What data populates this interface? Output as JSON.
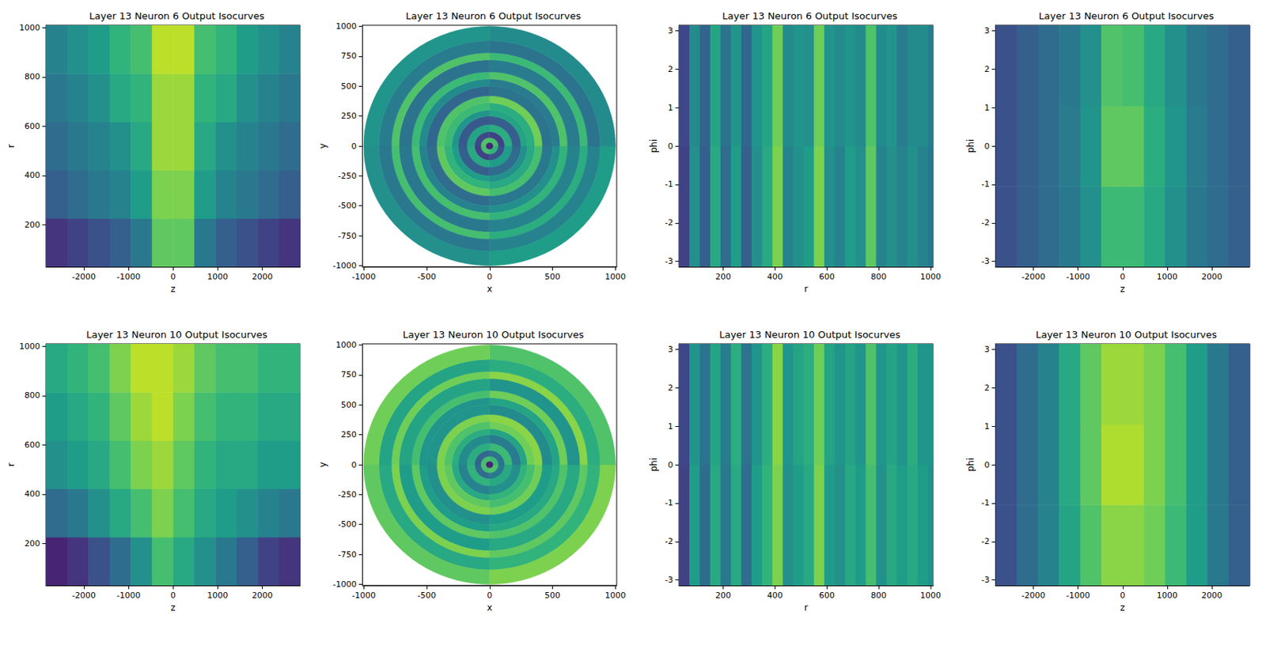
{
  "chart_data": [
    {
      "type": "heatmap",
      "title": "Layer 13 Neuron 6 Output Isocurves",
      "x_label": "z",
      "y_label": "r",
      "xlim": [
        -2850,
        2850
      ],
      "ylim": [
        30,
        1010
      ],
      "xticks": [
        -2000,
        -1000,
        0,
        1000,
        2000
      ],
      "yticks": [
        200,
        400,
        600,
        800,
        1000
      ],
      "value_range": [
        0,
        1
      ],
      "x_bins": [
        -2850,
        -2375,
        -1900,
        -1425,
        -950,
        -475,
        0,
        475,
        950,
        1425,
        1900,
        2375,
        2850
      ],
      "y_bins": [
        30,
        226,
        422,
        618,
        814,
        1010
      ],
      "cells": [
        [
          0.15,
          0.2,
          0.25,
          0.3,
          0.4,
          0.75,
          0.75,
          0.4,
          0.3,
          0.25,
          0.2,
          0.15
        ],
        [
          0.3,
          0.35,
          0.4,
          0.45,
          0.55,
          0.8,
          0.8,
          0.55,
          0.45,
          0.4,
          0.35,
          0.3
        ],
        [
          0.35,
          0.4,
          0.45,
          0.5,
          0.6,
          0.85,
          0.85,
          0.6,
          0.5,
          0.45,
          0.4,
          0.35
        ],
        [
          0.4,
          0.45,
          0.5,
          0.6,
          0.65,
          0.85,
          0.85,
          0.65,
          0.6,
          0.5,
          0.45,
          0.4
        ],
        [
          0.45,
          0.5,
          0.55,
          0.65,
          0.7,
          0.9,
          0.9,
          0.7,
          0.65,
          0.55,
          0.5,
          0.45
        ]
      ]
    },
    {
      "type": "polar_heatmap",
      "title": "Layer 13 Neuron 6 Output Isocurves",
      "x_label": "x",
      "y_label": "y",
      "xlim": [
        -1010,
        1010
      ],
      "ylim": [
        -1010,
        1010
      ],
      "xticks": [
        -1000,
        -500,
        0,
        500,
        1000
      ],
      "yticks": [
        -1000,
        -750,
        -500,
        -250,
        0,
        250,
        500,
        750,
        1000
      ],
      "value_range": [
        0,
        1
      ],
      "r_bins": [
        0,
        30,
        70,
        120,
        180,
        250,
        300,
        360,
        420,
        500,
        560,
        620,
        720,
        780,
        880,
        1000
      ],
      "phi_bins": [
        -3.1416,
        -1.5708,
        0,
        1.5708,
        3.1416
      ],
      "cells": [
        [
          0.1,
          0.1,
          0.1,
          0.1
        ],
        [
          0.7,
          0.65,
          0.7,
          0.72
        ],
        [
          0.2,
          0.25,
          0.2,
          0.22
        ],
        [
          0.6,
          0.55,
          0.62,
          0.58
        ],
        [
          0.3,
          0.35,
          0.3,
          0.28
        ],
        [
          0.55,
          0.5,
          0.58,
          0.52
        ],
        [
          0.65,
          0.6,
          0.62,
          0.68
        ],
        [
          0.75,
          0.7,
          0.78,
          0.72
        ],
        [
          0.35,
          0.4,
          0.38,
          0.33
        ],
        [
          0.45,
          0.5,
          0.42,
          0.48
        ],
        [
          0.7,
          0.65,
          0.72,
          0.68
        ],
        [
          0.4,
          0.45,
          0.42,
          0.38
        ],
        [
          0.7,
          0.62,
          0.68,
          0.72
        ],
        [
          0.4,
          0.45,
          0.38,
          0.42
        ],
        [
          0.5,
          0.55,
          0.48,
          0.52
        ]
      ]
    },
    {
      "type": "heatmap",
      "title": "Layer 13 Neuron 6 Output Isocurves",
      "x_label": "r",
      "y_label": "phi",
      "xlim": [
        30,
        1010
      ],
      "ylim": [
        -3.1416,
        3.1416
      ],
      "xticks": [
        200,
        400,
        600,
        800,
        1000
      ],
      "yticks": [
        -3,
        -2,
        -1,
        0,
        1,
        2,
        3
      ],
      "value_range": [
        0,
        1
      ],
      "x_bins": [
        30,
        70,
        110,
        150,
        190,
        230,
        270,
        310,
        350,
        390,
        430,
        470,
        510,
        550,
        590,
        630,
        670,
        710,
        750,
        790,
        830,
        870,
        910,
        950,
        990,
        1010
      ],
      "y_bins": [
        -3.1416,
        0,
        3.1416
      ],
      "cells": [
        [
          0.2,
          0.5,
          0.3,
          0.6,
          0.35,
          0.55,
          0.3,
          0.5,
          0.6,
          0.8,
          0.45,
          0.5,
          0.55,
          0.8,
          0.5,
          0.45,
          0.55,
          0.5,
          0.75,
          0.45,
          0.5,
          0.45,
          0.5,
          0.45,
          0.4
        ],
        [
          0.22,
          0.48,
          0.32,
          0.58,
          0.38,
          0.52,
          0.33,
          0.52,
          0.58,
          0.78,
          0.48,
          0.52,
          0.5,
          0.78,
          0.52,
          0.48,
          0.52,
          0.48,
          0.72,
          0.48,
          0.52,
          0.42,
          0.48,
          0.48,
          0.42
        ]
      ]
    },
    {
      "type": "heatmap",
      "title": "Layer 13 Neuron 6 Output Isocurves",
      "x_label": "z",
      "y_label": "phi",
      "xlim": [
        -2850,
        2850
      ],
      "ylim": [
        -3.1416,
        3.1416
      ],
      "xticks": [
        -2000,
        -1000,
        0,
        1000,
        2000
      ],
      "yticks": [
        -3,
        -2,
        -1,
        0,
        1,
        2,
        3
      ],
      "value_range": [
        0,
        1
      ],
      "x_bins": [
        -2850,
        -2375,
        -1900,
        -1425,
        -950,
        -475,
        0,
        475,
        950,
        1425,
        1900,
        2375,
        2850
      ],
      "y_bins": [
        -3.1416,
        -1.0472,
        1.0472,
        3.1416
      ],
      "cells": [
        [
          0.25,
          0.3,
          0.35,
          0.4,
          0.5,
          0.68,
          0.68,
          0.6,
          0.5,
          0.4,
          0.35,
          0.3
        ],
        [
          0.25,
          0.3,
          0.35,
          0.42,
          0.52,
          0.75,
          0.75,
          0.62,
          0.52,
          0.42,
          0.35,
          0.3
        ],
        [
          0.25,
          0.3,
          0.35,
          0.4,
          0.5,
          0.72,
          0.7,
          0.6,
          0.5,
          0.4,
          0.35,
          0.3
        ]
      ]
    },
    {
      "type": "heatmap",
      "title": "Layer 13 Neuron 10 Output Isocurves",
      "x_label": "z",
      "y_label": "r",
      "xlim": [
        -2850,
        2850
      ],
      "ylim": [
        30,
        1010
      ],
      "xticks": [
        -2000,
        -1000,
        0,
        1000,
        2000
      ],
      "yticks": [
        200,
        400,
        600,
        800,
        1000
      ],
      "value_range": [
        0,
        1
      ],
      "x_bins": [
        -2850,
        -2375,
        -1900,
        -1425,
        -950,
        -475,
        0,
        475,
        950,
        1425,
        1900,
        2375,
        2850
      ],
      "y_bins": [
        30,
        226,
        422,
        618,
        814,
        1010
      ],
      "cells": [
        [
          0.1,
          0.15,
          0.25,
          0.35,
          0.5,
          0.7,
          0.6,
          0.5,
          0.4,
          0.3,
          0.2,
          0.15
        ],
        [
          0.35,
          0.4,
          0.5,
          0.6,
          0.7,
          0.8,
          0.7,
          0.6,
          0.55,
          0.5,
          0.45,
          0.4
        ],
        [
          0.5,
          0.55,
          0.6,
          0.7,
          0.8,
          0.85,
          0.75,
          0.65,
          0.6,
          0.6,
          0.55,
          0.55
        ],
        [
          0.55,
          0.6,
          0.65,
          0.75,
          0.85,
          0.9,
          0.8,
          0.7,
          0.65,
          0.65,
          0.6,
          0.6
        ],
        [
          0.6,
          0.65,
          0.7,
          0.8,
          0.9,
          0.9,
          0.85,
          0.75,
          0.7,
          0.7,
          0.65,
          0.65
        ]
      ]
    },
    {
      "type": "polar_heatmap",
      "title": "Layer 13 Neuron 10 Output Isocurves",
      "x_label": "x",
      "y_label": "y",
      "xlim": [
        -1010,
        1010
      ],
      "ylim": [
        -1010,
        1010
      ],
      "xticks": [
        -1000,
        -500,
        0,
        500,
        1000
      ],
      "yticks": [
        -1000,
        -750,
        -500,
        -250,
        0,
        250,
        500,
        750,
        1000
      ],
      "value_range": [
        0,
        1
      ],
      "r_bins": [
        0,
        30,
        70,
        120,
        180,
        250,
        300,
        360,
        420,
        500,
        560,
        620,
        720,
        780,
        880,
        1000
      ],
      "phi_bins": [
        -3.1416,
        -1.5708,
        0,
        1.5708,
        3.1416
      ],
      "cells": [
        [
          0.1,
          0.1,
          0.1,
          0.1
        ],
        [
          0.7,
          0.72,
          0.68,
          0.7
        ],
        [
          0.35,
          0.4,
          0.38,
          0.33
        ],
        [
          0.65,
          0.6,
          0.68,
          0.62
        ],
        [
          0.45,
          0.5,
          0.42,
          0.48
        ],
        [
          0.6,
          0.65,
          0.58,
          0.62
        ],
        [
          0.75,
          0.7,
          0.78,
          0.72
        ],
        [
          0.8,
          0.78,
          0.82,
          0.8
        ],
        [
          0.5,
          0.55,
          0.48,
          0.52
        ],
        [
          0.55,
          0.6,
          0.58,
          0.52
        ],
        [
          0.75,
          0.72,
          0.78,
          0.7
        ],
        [
          0.55,
          0.6,
          0.52,
          0.58
        ],
        [
          0.8,
          0.75,
          0.82,
          0.78
        ],
        [
          0.6,
          0.65,
          0.62,
          0.58
        ],
        [
          0.75,
          0.8,
          0.72,
          0.78
        ]
      ]
    },
    {
      "type": "heatmap",
      "title": "Layer 13 Neuron 10 Output Isocurves",
      "x_label": "r",
      "y_label": "phi",
      "xlim": [
        30,
        1010
      ],
      "ylim": [
        -3.1416,
        3.1416
      ],
      "xticks": [
        200,
        400,
        600,
        800,
        1000
      ],
      "yticks": [
        -3,
        -2,
        -1,
        0,
        1,
        2,
        3
      ],
      "value_range": [
        0,
        1
      ],
      "x_bins": [
        30,
        70,
        110,
        150,
        190,
        230,
        270,
        310,
        350,
        390,
        430,
        470,
        510,
        550,
        590,
        630,
        670,
        710,
        750,
        790,
        830,
        870,
        910,
        950,
        990,
        1010
      ],
      "y_bins": [
        -3.1416,
        0,
        3.1416
      ],
      "cells": [
        [
          0.2,
          0.55,
          0.35,
          0.6,
          0.4,
          0.6,
          0.35,
          0.55,
          0.65,
          0.8,
          0.5,
          0.55,
          0.6,
          0.8,
          0.55,
          0.5,
          0.6,
          0.55,
          0.7,
          0.5,
          0.6,
          0.55,
          0.6,
          0.55,
          0.5
        ],
        [
          0.22,
          0.52,
          0.38,
          0.58,
          0.42,
          0.62,
          0.38,
          0.52,
          0.62,
          0.82,
          0.52,
          0.58,
          0.62,
          0.78,
          0.58,
          0.52,
          0.58,
          0.52,
          0.72,
          0.52,
          0.58,
          0.52,
          0.62,
          0.52,
          0.52
        ]
      ]
    },
    {
      "type": "heatmap",
      "title": "Layer 13 Neuron 10 Output Isocurves",
      "x_label": "z",
      "y_label": "phi",
      "xlim": [
        -2850,
        2850
      ],
      "ylim": [
        -3.1416,
        3.1416
      ],
      "xticks": [
        -2000,
        -1000,
        0,
        1000,
        2000
      ],
      "yticks": [
        -3,
        -2,
        -1,
        0,
        1,
        2,
        3
      ],
      "value_range": [
        0,
        1
      ],
      "x_bins": [
        -2850,
        -2375,
        -1900,
        -1425,
        -950,
        -475,
        0,
        475,
        950,
        1425,
        1900,
        2375,
        2850
      ],
      "y_bins": [
        -3.1416,
        -1.0472,
        1.0472,
        3.1416
      ],
      "cells": [
        [
          0.25,
          0.35,
          0.45,
          0.58,
          0.72,
          0.82,
          0.82,
          0.78,
          0.68,
          0.55,
          0.4,
          0.3
        ],
        [
          0.25,
          0.35,
          0.45,
          0.6,
          0.75,
          0.88,
          0.88,
          0.8,
          0.7,
          0.55,
          0.4,
          0.3
        ],
        [
          0.25,
          0.35,
          0.45,
          0.6,
          0.75,
          0.85,
          0.85,
          0.8,
          0.7,
          0.55,
          0.4,
          0.3
        ]
      ]
    }
  ]
}
